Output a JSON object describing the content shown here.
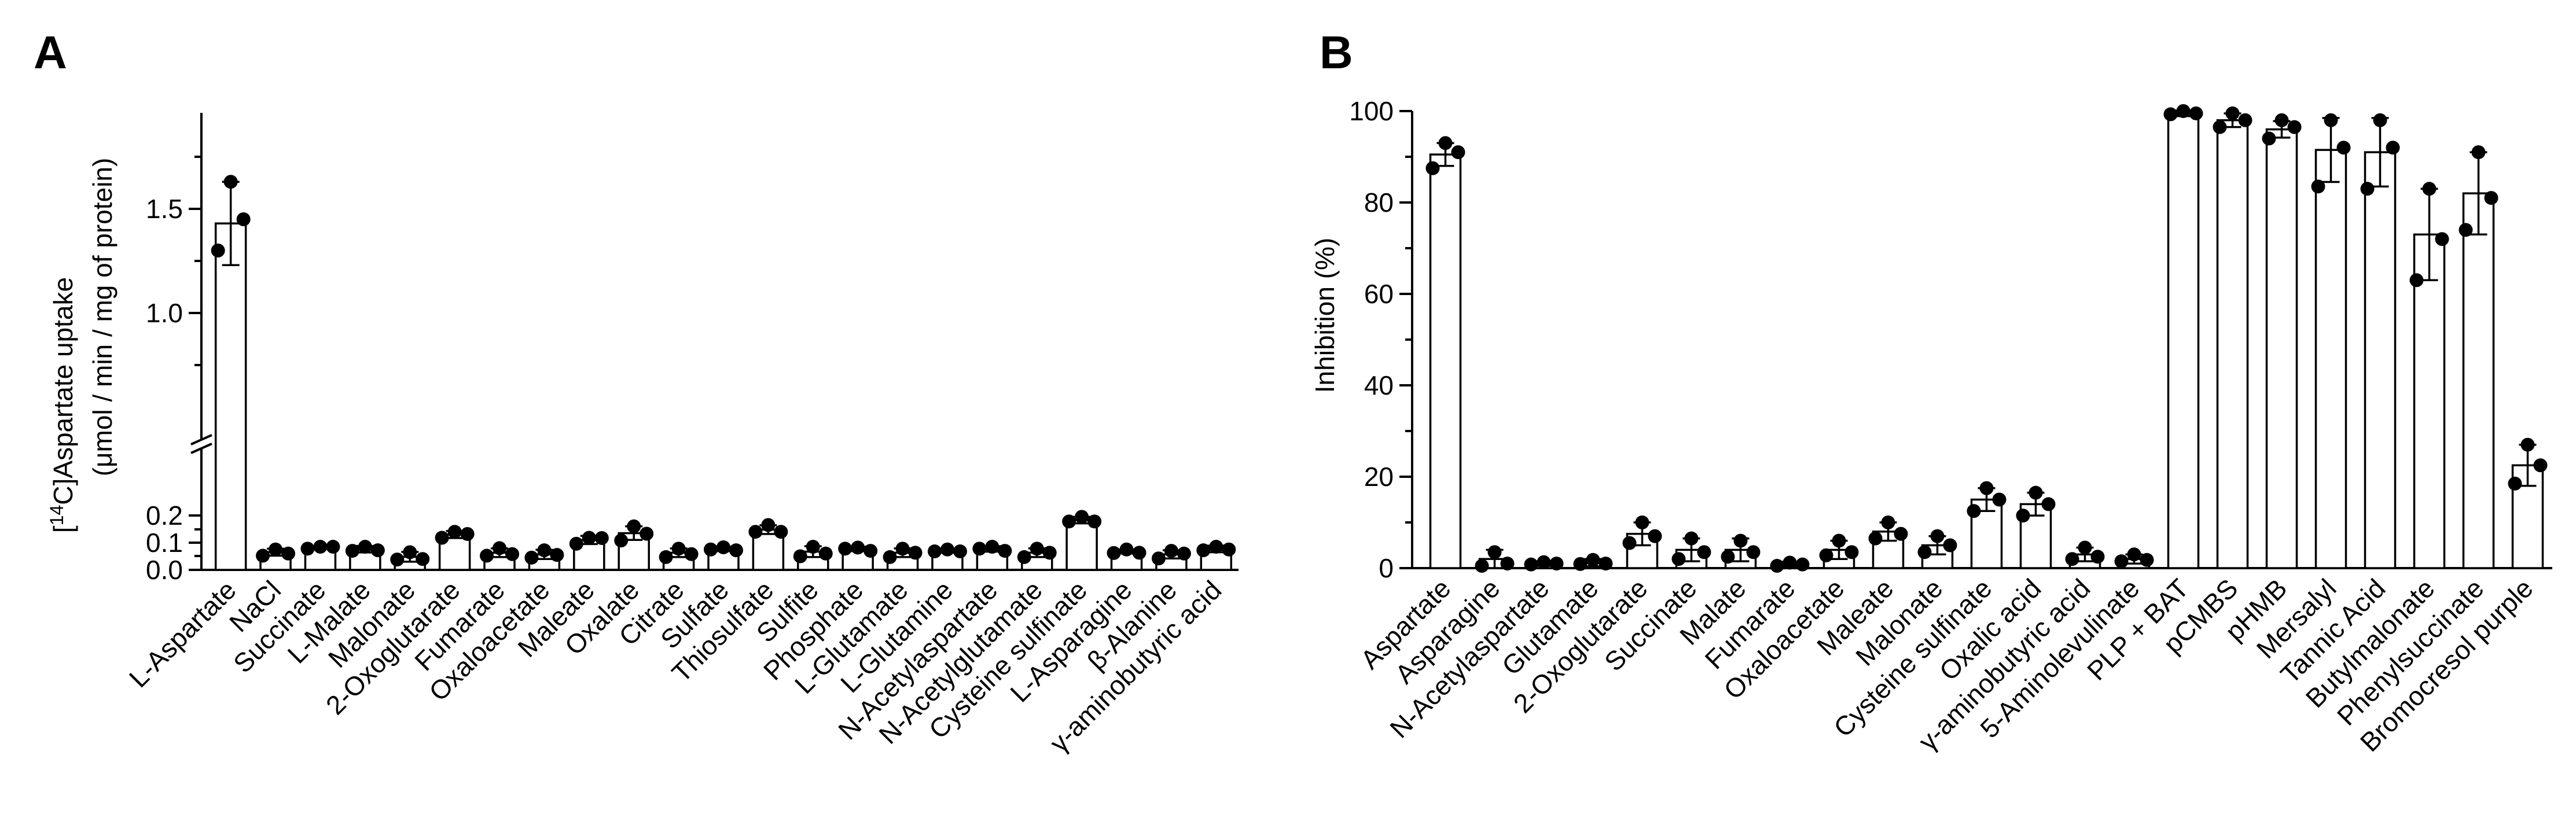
{
  "panels": [
    {
      "letter": "A"
    },
    {
      "letter": "B"
    }
  ],
  "chart_data": [
    {
      "type": "bar",
      "panel": "A",
      "ylabel_prefix": "[",
      "ylabel_sup": "14",
      "ylabel_rest": "C]Aspartate uptake",
      "ylabel_line2": "(μmol / min / mg of protein)",
      "yaxis_broken": true,
      "ylim_lower": [
        0,
        0.2
      ],
      "ylim_upper": [
        0.35,
        1.9
      ],
      "yticks_lower": [
        "0.0",
        "0.1",
        "0.2"
      ],
      "yticks_upper": [
        "1.0",
        "1.5"
      ],
      "categories": [
        "L-Aspartate",
        "NaCl",
        "Succinate",
        "L-Malate",
        "Malonate",
        "2-Oxoglutarate",
        "Fumarate",
        "Oxaloacetate",
        "Maleate",
        "Oxalate",
        "Citrate",
        "Sulfate",
        "Thiosulfate",
        "Sulfite",
        "Phosphate",
        "L-Glutamate",
        "L-Glutamine",
        "N-Acetylaspartate",
        "N-Acetylglutamate",
        "Cysteine sulfinate",
        "L-Asparagine",
        "β-Alanine",
        "γ-aminobutyric acid"
      ],
      "values": [
        1.43,
        0.065,
        0.082,
        0.076,
        0.048,
        0.13,
        0.063,
        0.057,
        0.11,
        0.135,
        0.063,
        0.077,
        0.148,
        0.067,
        0.077,
        0.063,
        0.07,
        0.077,
        0.063,
        0.183,
        0.067,
        0.057,
        0.077
      ],
      "errors": [
        0.2,
        0.013,
        0.005,
        0.012,
        0.018,
        0.013,
        0.016,
        0.017,
        0.015,
        0.025,
        0.016,
        0.008,
        0.016,
        0.02,
        0.008,
        0.016,
        0.007,
        0.01,
        0.016,
        0.012,
        0.007,
        0.015,
        0.012
      ],
      "points": [
        [
          1.63,
          1.45,
          1.3
        ],
        [
          0.075,
          0.06,
          0.052
        ],
        [
          0.085,
          0.085,
          0.078
        ],
        [
          0.085,
          0.072,
          0.07
        ],
        [
          0.065,
          0.04,
          0.038
        ],
        [
          0.14,
          0.132,
          0.118
        ],
        [
          0.08,
          0.058,
          0.052
        ],
        [
          0.072,
          0.055,
          0.045
        ],
        [
          0.118,
          0.117,
          0.096
        ],
        [
          0.16,
          0.133,
          0.108
        ],
        [
          0.078,
          0.058,
          0.047
        ],
        [
          0.083,
          0.072,
          0.075
        ],
        [
          0.165,
          0.14,
          0.14
        ],
        [
          0.085,
          0.06,
          0.05
        ],
        [
          0.082,
          0.07,
          0.078
        ],
        [
          0.078,
          0.063,
          0.047
        ],
        [
          0.075,
          0.068,
          0.068
        ],
        [
          0.085,
          0.07,
          0.078
        ],
        [
          0.078,
          0.063,
          0.047
        ],
        [
          0.195,
          0.178,
          0.178
        ],
        [
          0.075,
          0.063,
          0.062
        ],
        [
          0.07,
          0.06,
          0.042
        ],
        [
          0.085,
          0.075,
          0.072
        ]
      ]
    },
    {
      "type": "bar",
      "panel": "B",
      "ylabel": "Inhibition (%)",
      "ylim": [
        0,
        100
      ],
      "yticks": [
        "0",
        "20",
        "40",
        "60",
        "80",
        "100"
      ],
      "categories": [
        "Aspartate",
        "Asparagine",
        "N-Acetylaspartate",
        "Glutamate",
        "2-Oxoglutarate",
        "Succinate",
        "Malate",
        "Fumarate",
        "Oxaloacetate",
        "Maleate",
        "Malonate",
        "Cysteine sulfinate",
        "Oxalic acid",
        "γ-aminobutyric acid",
        "5-Aminolevulinate",
        "PLP + BAT",
        "pCMBS",
        "pHMB",
        "Mersalyl",
        "Tannic Acid",
        "Butylmalonate",
        "Phenylsuccinate",
        "Bromocresol purple"
      ],
      "values": [
        90.5,
        2,
        1,
        1.2,
        7.5,
        4,
        4,
        0.8,
        4,
        8,
        5,
        15,
        14,
        3,
        2,
        99.5,
        98,
        96,
        91.5,
        91,
        73,
        82,
        22.5
      ],
      "errors": [
        2.5,
        2,
        0.5,
        0.8,
        2.5,
        2.5,
        2.5,
        0.6,
        2,
        2,
        2,
        2.5,
        2.5,
        1.5,
        1,
        0.6,
        1.5,
        1.8,
        7,
        7.5,
        10,
        9,
        4.5
      ],
      "points": [
        [
          93,
          91,
          87.5
        ],
        [
          3.5,
          1,
          0.5
        ],
        [
          1.3,
          1,
          0.8
        ],
        [
          1.8,
          1,
          0.9
        ],
        [
          10,
          7,
          5.5
        ],
        [
          6.5,
          3.5,
          2
        ],
        [
          6,
          3.5,
          2.5
        ],
        [
          1.2,
          0.8,
          0.5
        ],
        [
          6,
          3.5,
          2.8
        ],
        [
          10,
          7.5,
          6.5
        ],
        [
          7,
          5,
          3.5
        ],
        [
          17.5,
          15,
          12.5
        ],
        [
          16.5,
          14,
          11.5
        ],
        [
          4.5,
          2.5,
          2
        ],
        [
          3,
          1.8,
          1.5
        ],
        [
          100,
          99.5,
          99.3
        ],
        [
          99.5,
          98,
          96.5
        ],
        [
          98,
          96.5,
          94
        ],
        [
          98,
          92,
          83.5
        ],
        [
          98,
          92,
          83
        ],
        [
          83,
          72,
          63
        ],
        [
          91,
          81,
          74
        ],
        [
          27,
          22.5,
          18.5
        ]
      ]
    }
  ]
}
